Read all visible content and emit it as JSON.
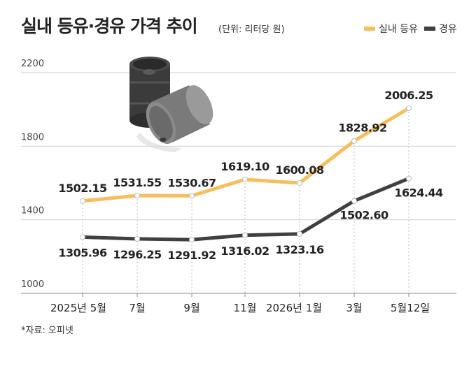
{
  "header": {
    "title": "실내 등유·경유 가격 추이",
    "unit": "(단위: 리터당 원)"
  },
  "legend": [
    {
      "label": "실내 등유",
      "color": "#F7BE5C"
    },
    {
      "label": "경유",
      "color": "#404040"
    }
  ],
  "source": "*자료: 오피넷",
  "decoration": "oil-barrels-illustration",
  "chart_data": {
    "type": "line",
    "categories": [
      "2025년 5월",
      "7월",
      "9월",
      "11월",
      "2026년 1월",
      "3월",
      "5월12일"
    ],
    "series": [
      {
        "name": "실내 등유",
        "color": "#F7BE5C",
        "values": [
          1502.15,
          1531.55,
          1530.67,
          1619.1,
          1600.08,
          1828.92,
          2006.25
        ],
        "labels": [
          "1502.15",
          "1531.55",
          "1530.67",
          "1619.10",
          "1600.08",
          "1828.92",
          "2006.25"
        ]
      },
      {
        "name": "경유",
        "color": "#404040",
        "values": [
          1305.96,
          1296.25,
          1291.92,
          1316.02,
          1323.16,
          1502.6,
          1624.44
        ],
        "labels": [
          "1305.96",
          "1296.25",
          "1291.92",
          "1316.02",
          "1323.16",
          "1502.60",
          "1624.44"
        ]
      }
    ],
    "yticks": [
      "2200",
      "1800",
      "1400",
      "1000"
    ],
    "ylim": [
      1000,
      2200
    ],
    "grid": true
  }
}
